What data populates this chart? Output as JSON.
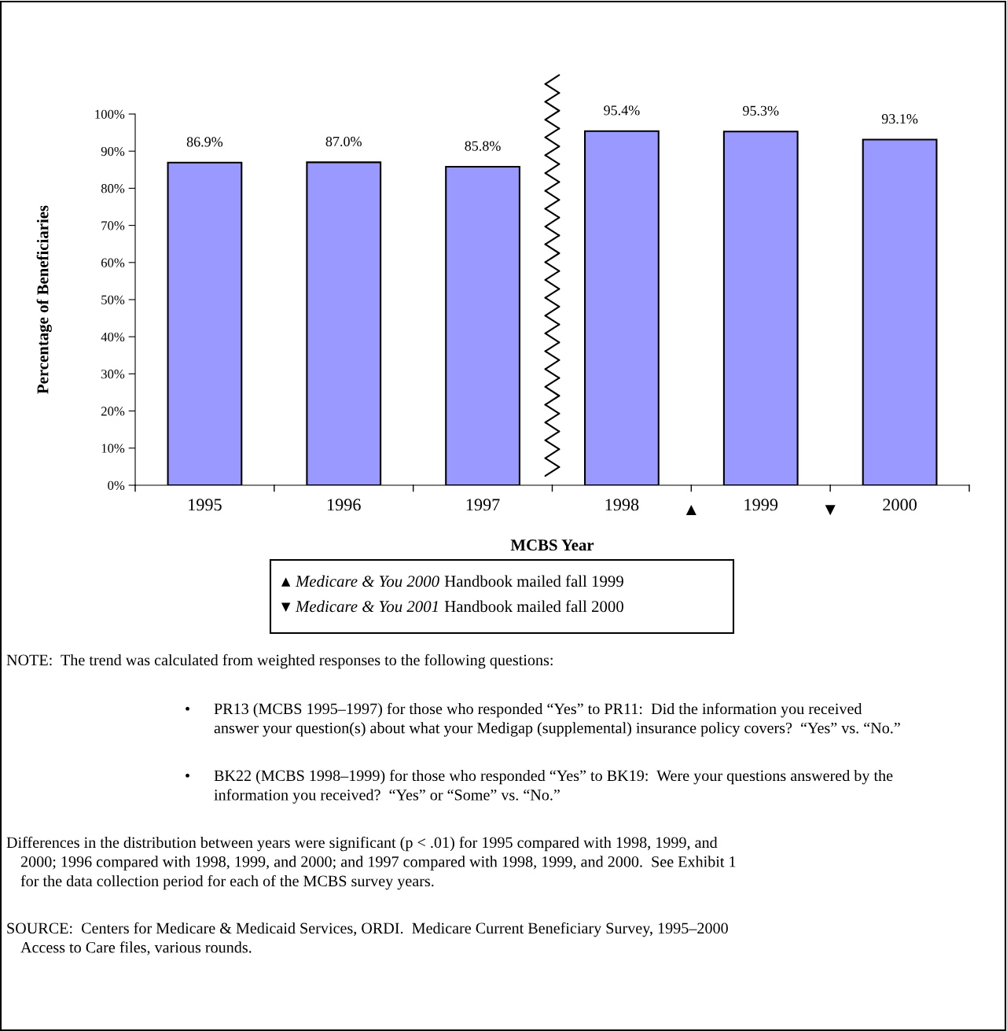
{
  "chart_data": {
    "type": "bar",
    "xlabel": "MCBS Year",
    "ylabel": "Percentage of Beneficiaries",
    "categories": [
      "1995",
      "1996",
      "1997",
      "1998",
      "1999",
      "2000"
    ],
    "values": [
      86.9,
      87.0,
      85.8,
      95.4,
      95.3,
      93.1
    ],
    "value_labels": [
      "86.9%",
      "87.0%",
      "85.8%",
      "95.4%",
      "95.3%",
      "93.1%"
    ],
    "color": "#9999ff",
    "ylim": [
      0,
      100
    ],
    "yticks": [
      {
        "value": 0,
        "label": "0%"
      },
      {
        "value": 10,
        "label": "10%"
      },
      {
        "value": 20,
        "label": "20%"
      },
      {
        "value": 30,
        "label": "30%"
      },
      {
        "value": 40,
        "label": "40%"
      },
      {
        "value": 50,
        "label": "50%"
      },
      {
        "value": 60,
        "label": "60%"
      },
      {
        "value": 70,
        "label": "70%"
      },
      {
        "value": 80,
        "label": "80%"
      },
      {
        "value": 90,
        "label": "90%"
      },
      {
        "value": 100,
        "label": "100%"
      }
    ],
    "grid": false,
    "annotations": [
      "▲",
      "▼",
      "▲",
      "Medicare & You 2000",
      " Handbook mailed fall 1999",
      "▼",
      "Medicare & You 2001",
      " Handbook mailed fall 2000",
      "NOTE:  The trend was calculated from weighted responses to the following questions:",
      "•",
      "PR13 (MCBS 1995–1997) for those who responded “Yes” to PR11:  Did the information you received\nanswer your question(s) about what your Medigap (supplemental) insurance policy covers?  “Yes” vs. “No.”",
      "•",
      "BK22 (MCBS 1998–1999) for those who responded “Yes” to BK19:  Were your questions answered by the\ninformation you received?  “Yes” or “Some” vs. “No.”",
      "Differences in the distribution between years were significant (p < .01) for 1995 compared with 1998, 1999, and\n2000; 1996 compared with 1998, 1999, and 2000; and 1997 compared with 1998, 1999, and 2000.  See Exhibit 1\nfor the data collection period for each of the MCBS survey years.",
      "SOURCE:  Centers for Medicare & Medicaid Services, ORDI.  Medicare Current Beneficiary Survey, 1995–2000\nAccess to Care files, various rounds."
    ]
  }
}
